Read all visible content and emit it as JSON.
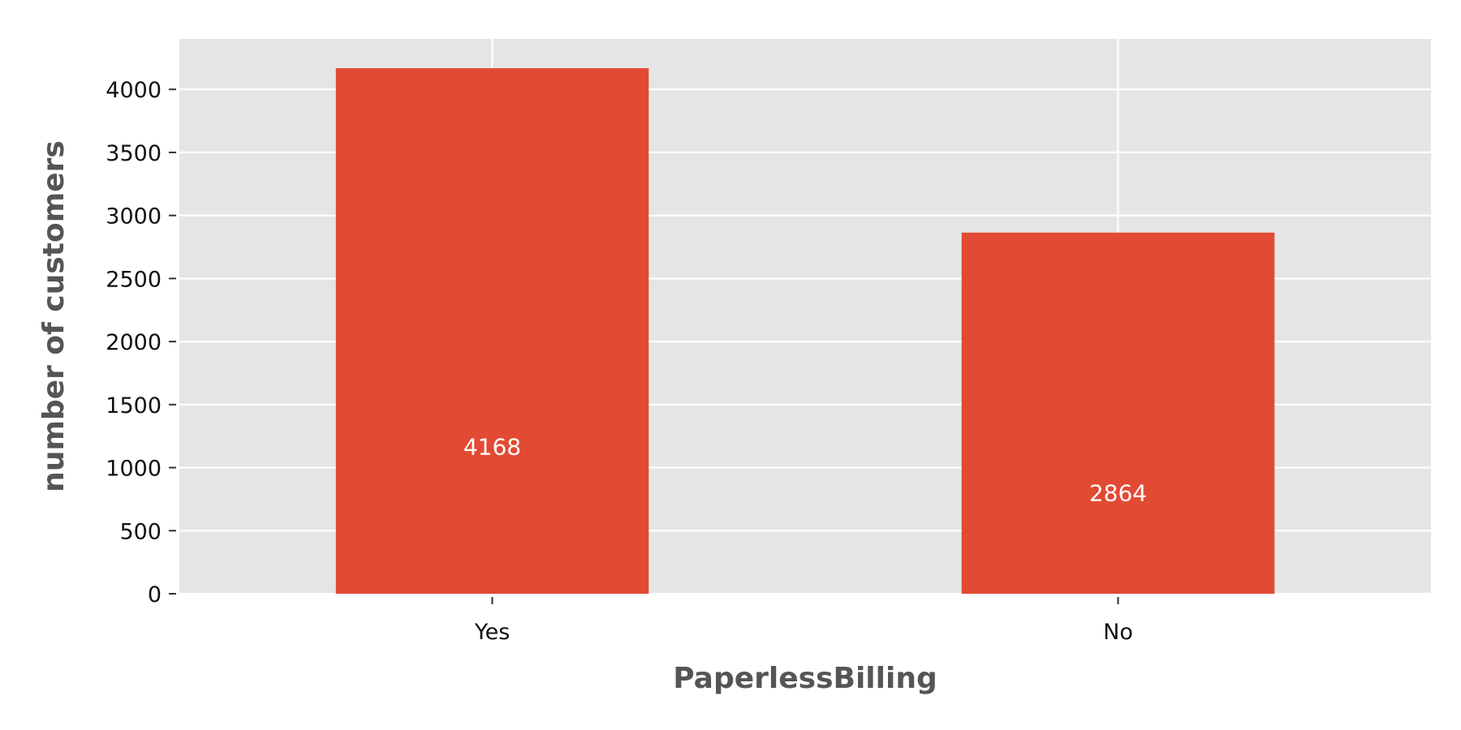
{
  "chart_data": {
    "type": "bar",
    "categories": [
      "Yes",
      "No"
    ],
    "values": [
      4168,
      2864
    ],
    "data_labels": [
      "4168",
      "2864"
    ],
    "title": "",
    "xlabel": "PaperlessBilling",
    "ylabel": "number of customers",
    "ylim": [
      0,
      4400
    ],
    "yticks": [
      0,
      500,
      1000,
      1500,
      2000,
      2500,
      3000,
      3500,
      4000
    ],
    "grid": true,
    "legend": "none",
    "colors": {
      "bar": "#E24A33",
      "plot_background": "#E5E5E5",
      "grid": "#FFFFFF",
      "data_label": "#FFFFFF"
    }
  }
}
